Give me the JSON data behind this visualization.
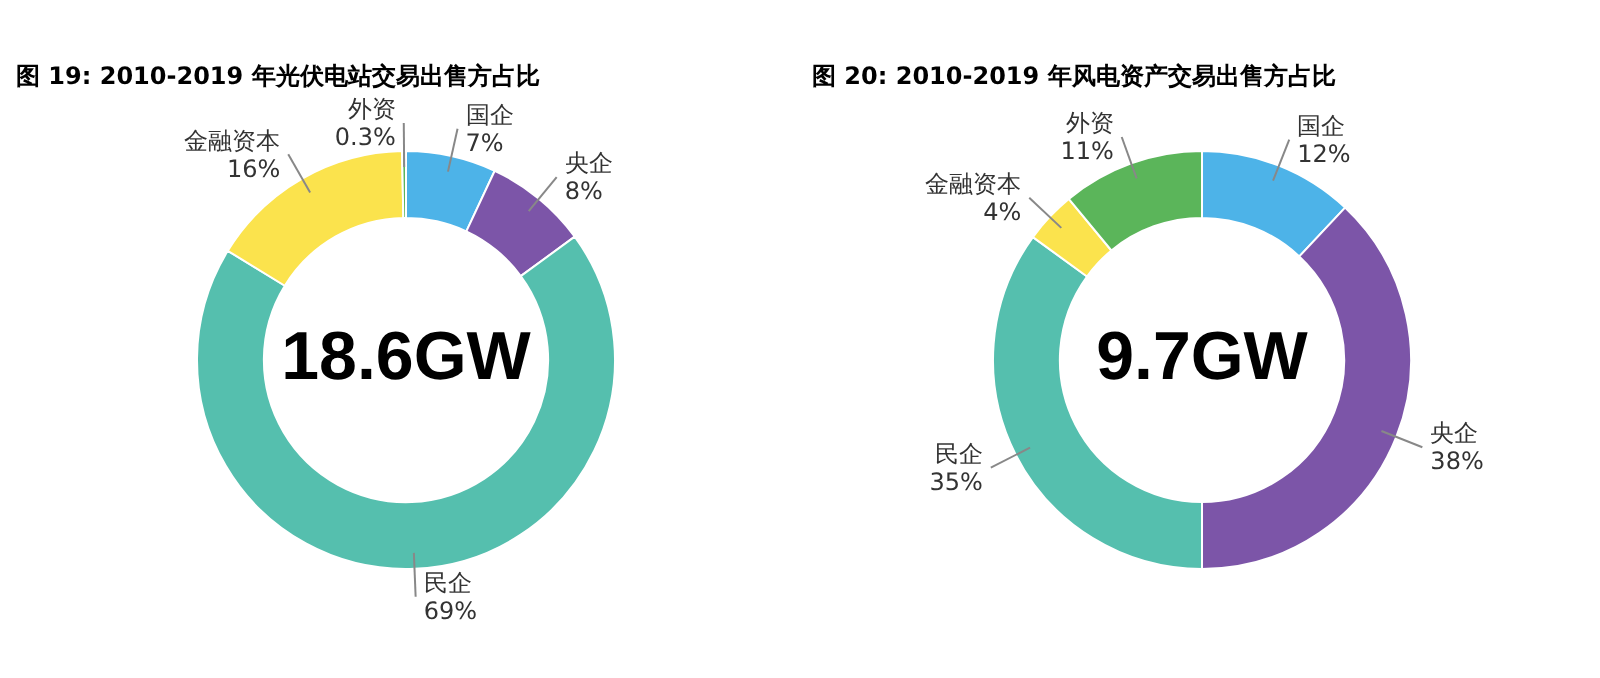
{
  "chart_data": [
    {
      "type": "donut",
      "title": "图 19: 2010-2019 年光伏电站交易出售方占比",
      "categories": [
        "国企",
        "央企",
        "民企",
        "金融资本",
        "外资"
      ],
      "values": [
        7,
        8,
        69,
        16,
        0.3
      ],
      "value_labels": [
        "7%",
        "8%",
        "69%",
        "16%",
        "0.3%"
      ],
      "colors": [
        "#4db3e8",
        "#7c55a8",
        "#55bfae",
        "#fbe34d",
        "#5bb55a"
      ],
      "annotations": [
        "18.6GW"
      ],
      "legend": false
    },
    {
      "type": "donut",
      "title": "图 20: 2010-2019 年风电资产交易出售方占比",
      "categories": [
        "国企",
        "央企",
        "民企",
        "金融资本",
        "外资"
      ],
      "values": [
        12,
        38,
        35,
        4,
        11
      ],
      "value_labels": [
        "12%",
        "38%",
        "35%",
        "4%",
        "11%"
      ],
      "colors": [
        "#4db3e8",
        "#7c55a8",
        "#55bfae",
        "#fbe34d",
        "#5bb55a"
      ],
      "annotations": [
        "9.7GW"
      ],
      "legend": false
    }
  ]
}
